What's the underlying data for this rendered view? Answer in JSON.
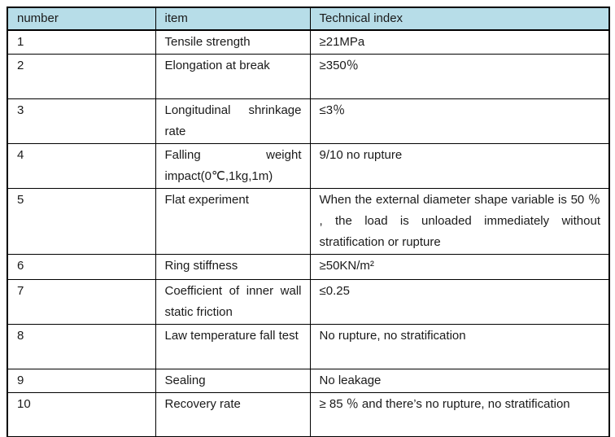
{
  "table": {
    "columns": [
      {
        "label": "number"
      },
      {
        "label": "item"
      },
      {
        "label": "Technical index"
      }
    ],
    "rows": [
      {
        "number": "1",
        "item": "Tensile strength",
        "index": "≥21MPa"
      },
      {
        "number": "2",
        "item": "Elongation at break",
        "index": "≥350％"
      },
      {
        "number": "3",
        "item": "Longitudinal shrinkage rate",
        "index": "≤3％"
      },
      {
        "number": "4",
        "item": "Falling weight impact(0℃,1kg,1m)",
        "index": "9/10 no rupture"
      },
      {
        "number": "5",
        "item": "Flat experiment",
        "index": "When the external diameter shape variable is 50 ％ , the load is unloaded immediately without stratification or rupture"
      },
      {
        "number": "6",
        "item": "Ring stiffness",
        "index": "≥50KN/m²"
      },
      {
        "number": "7",
        "item": "Coefficient of inner wall static friction",
        "index": "≤0.25"
      },
      {
        "number": "8",
        "item": "Law temperature fall test",
        "index": "No rupture, no stratification"
      },
      {
        "number": "9",
        "item": "Sealing",
        "index": "No leakage"
      },
      {
        "number": "10",
        "item": "Recovery rate",
        "index": "≥ 85 ％  and there’s no rupture, no stratification"
      }
    ]
  },
  "colors": {
    "header_bg": "#b7dde8",
    "border": "#000000",
    "text": "#1a1a1a"
  }
}
